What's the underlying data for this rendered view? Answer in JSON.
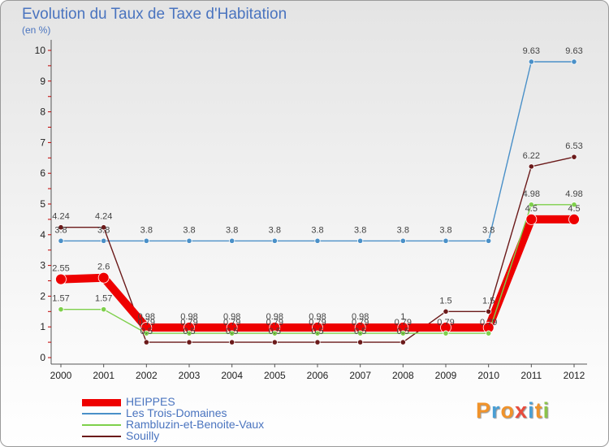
{
  "header": {
    "title": "Evolution du Taux de Taxe d'Habitation",
    "unit": "(en %)"
  },
  "brand": {
    "letters": [
      "P",
      "r",
      "o",
      "x",
      "i",
      "t",
      "i"
    ],
    "colors": [
      "#f0932b",
      "#4a9fd5",
      "#f0932b",
      "#e84c3d",
      "#4a9fd5",
      "#f0932b",
      "#8bc34a"
    ]
  },
  "chart_data": {
    "type": "line",
    "title": "Evolution du Taux de Taxe d'Habitation",
    "ylabel": "(en %)",
    "xlabel": "",
    "x": [
      "2000",
      "2001",
      "2002",
      "2003",
      "2004",
      "2005",
      "2006",
      "2007",
      "2008",
      "2009",
      "2010",
      "2011",
      "2012"
    ],
    "ylim": [
      0,
      10
    ],
    "yticks": [
      "0",
      "1",
      "2",
      "3",
      "4",
      "5",
      "6",
      "7",
      "8",
      "9",
      "10"
    ],
    "grid": false,
    "legend_position": "bottom-left",
    "series": [
      {
        "name": "HEIPPES",
        "color": "#ee0000",
        "values": [
          2.55,
          2.6,
          0.98,
          0.98,
          0.98,
          0.98,
          0.98,
          0.98,
          0.98,
          0.98,
          0.98,
          4.5,
          4.5
        ],
        "labels": [
          "2.55",
          "2.6",
          "0.98",
          "0.98",
          "0.98",
          "0.98",
          "0.98",
          "0.98",
          "1",
          "",
          "",
          "4.5",
          "4.5"
        ]
      },
      {
        "name": "Les Trois-Domaines",
        "color": "#4a90c8",
        "values": [
          3.8,
          3.8,
          3.8,
          3.8,
          3.8,
          3.8,
          3.8,
          3.8,
          3.8,
          3.8,
          3.8,
          9.63,
          9.63
        ],
        "labels": [
          "3.8",
          "3.8",
          "3.8",
          "3.8",
          "3.8",
          "3.8",
          "3.8",
          "3.8",
          "3.8",
          "3.8",
          "3.8",
          "9.63",
          "9.63"
        ]
      },
      {
        "name": "Rambluzin-et-Benoite-Vaux",
        "color": "#7ed04b",
        "values": [
          1.57,
          1.57,
          0.79,
          0.79,
          0.79,
          0.79,
          0.79,
          0.79,
          0.79,
          0.79,
          0.79,
          4.98,
          4.98
        ],
        "labels": [
          "1.57",
          "1.57",
          "0.79",
          "0.79",
          "0.79",
          "0.79",
          "0.79",
          "0.79",
          "0.79",
          "0.79",
          "0.79",
          "4.98",
          "4.98"
        ]
      },
      {
        "name": "Souilly",
        "color": "#6b1a1a",
        "values": [
          4.24,
          4.24,
          0.5,
          0.5,
          0.5,
          0.5,
          0.5,
          0.5,
          0.5,
          1.5,
          1.5,
          6.22,
          6.53
        ],
        "labels": [
          "4.24",
          "4.24",
          "0.5",
          "0.5",
          "0.5",
          "0.5",
          "0.5",
          "0.5",
          "0.5",
          "1.5",
          "1.5",
          "6.22",
          "6.53"
        ]
      }
    ]
  }
}
